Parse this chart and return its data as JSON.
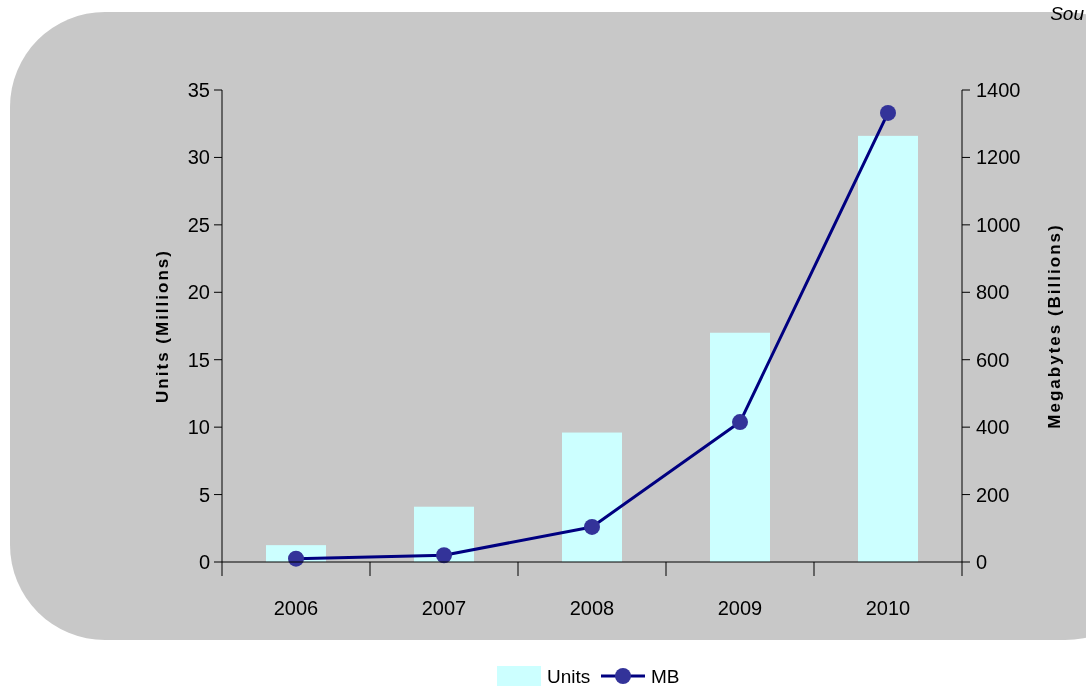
{
  "chart_data": {
    "type": "bar",
    "categories": [
      "2006",
      "2007",
      "2008",
      "2009",
      "2010"
    ],
    "series": [
      {
        "name": "Units",
        "color": "#ccffff",
        "values": [
          1.25,
          4.1,
          9.6,
          17.0,
          31.6
        ]
      },
      {
        "name": "MB",
        "type": "line",
        "axis": "y2",
        "color": "#000080",
        "marker": "circle",
        "values": [
          10,
          20,
          104,
          415,
          1332
        ]
      }
    ],
    "ylabel": "Units (Millions)",
    "y2label": "Megabytes (Billions)",
    "ylim": [
      0,
      35
    ],
    "yticks": [
      0,
      5,
      10,
      15,
      20,
      25,
      30,
      35
    ],
    "y2lim": [
      0,
      1400
    ],
    "y2ticks": [
      0,
      200,
      400,
      600,
      800,
      1000,
      1200,
      1400
    ],
    "legend": "bottom",
    "annotations": [
      "Sou"
    ]
  }
}
